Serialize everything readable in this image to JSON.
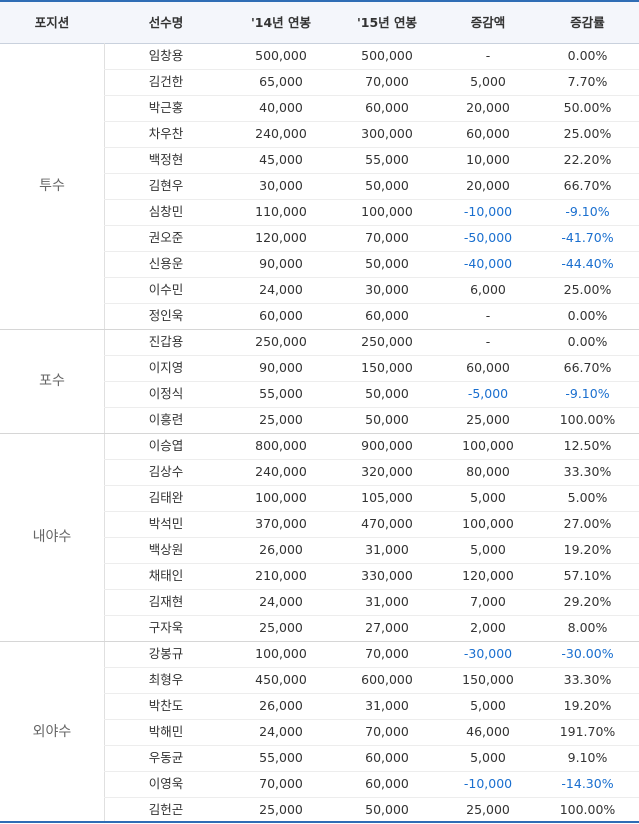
{
  "columns": [
    "포지션",
    "선수명",
    "'14년 연봉",
    "'15년 연봉",
    "증감액",
    "증감률"
  ],
  "groups": [
    {
      "position": "투수",
      "rows": [
        {
          "name": "임창용",
          "y14": "500,000",
          "y15": "500,000",
          "diff": "-",
          "rate": "0.00%",
          "neg": false
        },
        {
          "name": "김건한",
          "y14": "65,000",
          "y15": "70,000",
          "diff": "5,000",
          "rate": "7.70%",
          "neg": false
        },
        {
          "name": "박근홍",
          "y14": "40,000",
          "y15": "60,000",
          "diff": "20,000",
          "rate": "50.00%",
          "neg": false
        },
        {
          "name": "차우찬",
          "y14": "240,000",
          "y15": "300,000",
          "diff": "60,000",
          "rate": "25.00%",
          "neg": false
        },
        {
          "name": "백정현",
          "y14": "45,000",
          "y15": "55,000",
          "diff": "10,000",
          "rate": "22.20%",
          "neg": false
        },
        {
          "name": "김현우",
          "y14": "30,000",
          "y15": "50,000",
          "diff": "20,000",
          "rate": "66.70%",
          "neg": false
        },
        {
          "name": "심창민",
          "y14": "110,000",
          "y15": "100,000",
          "diff": "-10,000",
          "rate": "-9.10%",
          "neg": true
        },
        {
          "name": "권오준",
          "y14": "120,000",
          "y15": "70,000",
          "diff": "-50,000",
          "rate": "-41.70%",
          "neg": true
        },
        {
          "name": "신용운",
          "y14": "90,000",
          "y15": "50,000",
          "diff": "-40,000",
          "rate": "-44.40%",
          "neg": true
        },
        {
          "name": "이수민",
          "y14": "24,000",
          "y15": "30,000",
          "diff": "6,000",
          "rate": "25.00%",
          "neg": false
        },
        {
          "name": "정인욱",
          "y14": "60,000",
          "y15": "60,000",
          "diff": "-",
          "rate": "0.00%",
          "neg": false
        }
      ]
    },
    {
      "position": "포수",
      "rows": [
        {
          "name": "진갑용",
          "y14": "250,000",
          "y15": "250,000",
          "diff": "-",
          "rate": "0.00%",
          "neg": false
        },
        {
          "name": "이지영",
          "y14": "90,000",
          "y15": "150,000",
          "diff": "60,000",
          "rate": "66.70%",
          "neg": false
        },
        {
          "name": "이정식",
          "y14": "55,000",
          "y15": "50,000",
          "diff": "-5,000",
          "rate": "-9.10%",
          "neg": true
        },
        {
          "name": "이흥련",
          "y14": "25,000",
          "y15": "50,000",
          "diff": "25,000",
          "rate": "100.00%",
          "neg": false
        }
      ]
    },
    {
      "position": "내야수",
      "rows": [
        {
          "name": "이승엽",
          "y14": "800,000",
          "y15": "900,000",
          "diff": "100,000",
          "rate": "12.50%",
          "neg": false
        },
        {
          "name": "김상수",
          "y14": "240,000",
          "y15": "320,000",
          "diff": "80,000",
          "rate": "33.30%",
          "neg": false
        },
        {
          "name": "김태완",
          "y14": "100,000",
          "y15": "105,000",
          "diff": "5,000",
          "rate": "5.00%",
          "neg": false
        },
        {
          "name": "박석민",
          "y14": "370,000",
          "y15": "470,000",
          "diff": "100,000",
          "rate": "27.00%",
          "neg": false
        },
        {
          "name": "백상원",
          "y14": "26,000",
          "y15": "31,000",
          "diff": "5,000",
          "rate": "19.20%",
          "neg": false
        },
        {
          "name": "채태인",
          "y14": "210,000",
          "y15": "330,000",
          "diff": "120,000",
          "rate": "57.10%",
          "neg": false
        },
        {
          "name": "김재현",
          "y14": "24,000",
          "y15": "31,000",
          "diff": "7,000",
          "rate": "29.20%",
          "neg": false
        },
        {
          "name": "구자욱",
          "y14": "25,000",
          "y15": "27,000",
          "diff": "2,000",
          "rate": "8.00%",
          "neg": false
        }
      ]
    },
    {
      "position": "외야수",
      "rows": [
        {
          "name": "강봉규",
          "y14": "100,000",
          "y15": "70,000",
          "diff": "-30,000",
          "rate": "-30.00%",
          "neg": true
        },
        {
          "name": "최형우",
          "y14": "450,000",
          "y15": "600,000",
          "diff": "150,000",
          "rate": "33.30%",
          "neg": false
        },
        {
          "name": "박찬도",
          "y14": "26,000",
          "y15": "31,000",
          "diff": "5,000",
          "rate": "19.20%",
          "neg": false
        },
        {
          "name": "박해민",
          "y14": "24,000",
          "y15": "70,000",
          "diff": "46,000",
          "rate": "191.70%",
          "neg": false
        },
        {
          "name": "우동균",
          "y14": "55,000",
          "y15": "60,000",
          "diff": "5,000",
          "rate": "9.10%",
          "neg": false
        },
        {
          "name": "이영욱",
          "y14": "70,000",
          "y15": "60,000",
          "diff": "-10,000",
          "rate": "-14.30%",
          "neg": true
        },
        {
          "name": "김헌곤",
          "y14": "25,000",
          "y15": "50,000",
          "diff": "25,000",
          "rate": "100.00%",
          "neg": false
        }
      ]
    }
  ],
  "colors": {
    "negative": "#1a6fcf",
    "rule": "#2f6db5",
    "header_bg": "#f4f6fb"
  }
}
